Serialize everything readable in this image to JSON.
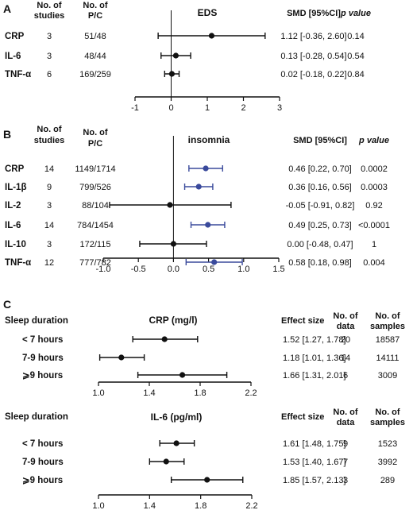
{
  "chart_data": [
    {
      "type": "forest",
      "panel": "A",
      "title": "EDS",
      "headers": [
        "No. of studies",
        "No. of P/C",
        "SMD [95%CI]",
        "p value"
      ],
      "rows": [
        {
          "label": "CRP",
          "studies": "3",
          "pc": "51/48",
          "est": 1.12,
          "lo": -0.36,
          "hi": 2.6,
          "ci_text": "1.12 [-0.36, 2.60]",
          "p": "0.14"
        },
        {
          "label": "IL-6",
          "studies": "3",
          "pc": "48/44",
          "est": 0.13,
          "lo": -0.28,
          "hi": 0.54,
          "ci_text": "0.13 [-0.28, 0.54]",
          "p": "0.54"
        },
        {
          "label": "TNF-α",
          "studies": "6",
          "pc": "169/259",
          "est": 0.02,
          "lo": -0.18,
          "hi": 0.22,
          "ci_text": "0.02 [-0.18, 0.22]",
          "p": "0.84"
        }
      ],
      "x_ticks": [
        -1,
        0,
        1,
        2,
        3
      ],
      "x_tick_labels": [
        "-1",
        "0",
        "1",
        "2",
        "3"
      ],
      "xlim": [
        -1,
        3
      ],
      "ref_line": 0,
      "marker_color": "#111111"
    },
    {
      "type": "forest",
      "panel": "B",
      "title": "insomnia",
      "headers": [
        "No. of studies",
        "No. of P/C",
        "SMD [95%CI]",
        "p value"
      ],
      "rows": [
        {
          "label": "CRP",
          "studies": "14",
          "pc": "1149/1714",
          "est": 0.46,
          "lo": 0.22,
          "hi": 0.7,
          "ci_text": "0.46 [0.22, 0.70]",
          "p": "0.0002",
          "sig": true
        },
        {
          "label": "IL-1β",
          "studies": "9",
          "pc": "799/526",
          "est": 0.36,
          "lo": 0.16,
          "hi": 0.56,
          "ci_text": "0.36 [0.16, 0.56]",
          "p": "0.0003",
          "sig": true
        },
        {
          "label": "IL-2",
          "studies": "3",
          "pc": "88/104",
          "est": -0.05,
          "lo": -0.91,
          "hi": 0.82,
          "ci_text": "-0.05 [-0.91, 0.82]",
          "p": "0.92",
          "sig": false
        },
        {
          "label": "IL-6",
          "studies": "14",
          "pc": "784/1454",
          "est": 0.49,
          "lo": 0.25,
          "hi": 0.73,
          "ci_text": "0.49 [0.25, 0.73]",
          "p": "<0.0001",
          "sig": true
        },
        {
          "label": "IL-10",
          "studies": "3",
          "pc": "172/115",
          "est": 0.0,
          "lo": -0.48,
          "hi": 0.47,
          "ci_text": "0.00 [-0.48, 0.47]",
          "p": "1",
          "sig": false
        },
        {
          "label": "TNF-α",
          "studies": "12",
          "pc": "777/782",
          "est": 0.58,
          "lo": 0.18,
          "hi": 0.98,
          "ci_text": "0.58 [0.18, 0.98]",
          "p": "0.004",
          "sig": true
        }
      ],
      "x_ticks": [
        -1.0,
        -0.5,
        0.0,
        0.5,
        1.0,
        1.5
      ],
      "x_tick_labels": [
        "-1.0",
        "-0.5",
        "0.0",
        "0.5",
        "1.0",
        "1.5"
      ],
      "xlim": [
        -1.0,
        1.5
      ],
      "ref_line": 0,
      "sig_color": "#3a4a9c",
      "marker_color": "#111111"
    },
    {
      "type": "forest",
      "panel": "C",
      "title": "CRP (mg/l)",
      "row_header": "Sleep duration",
      "headers": [
        "Effect size",
        "No. of data",
        "No. of samples"
      ],
      "rows": [
        {
          "label": "< 7 hours",
          "est": 1.52,
          "lo": 1.27,
          "hi": 1.78,
          "ci_text": "1.52 [1.27, 1.78]",
          "n_data": "20",
          "n_samples": "18587"
        },
        {
          "label": "7-9 hours",
          "est": 1.18,
          "lo": 1.01,
          "hi": 1.36,
          "ci_text": "1.18 [1.01, 1.36]",
          "n_data": "14",
          "n_samples": "14111"
        },
        {
          "label": "⩾9 hours",
          "est": 1.66,
          "lo": 1.31,
          "hi": 2.01,
          "ci_text": "1.66 [1.31, 2.01]",
          "n_data": "6",
          "n_samples": "3009"
        }
      ],
      "x_ticks": [
        1.0,
        1.4,
        1.8,
        2.2
      ],
      "x_tick_labels": [
        "1.0",
        "1.4",
        "1.8",
        "2.2"
      ],
      "xlim": [
        1.0,
        2.2
      ],
      "marker_color": "#111111"
    },
    {
      "type": "forest",
      "panel": "",
      "title": "IL-6 (pg/ml)",
      "row_header": "Sleep duration",
      "headers": [
        "Effect size",
        "No. of data",
        "No. of samples"
      ],
      "rows": [
        {
          "label": "< 7 hours",
          "est": 1.61,
          "lo": 1.48,
          "hi": 1.75,
          "ci_text": "1.61 [1.48, 1.75]",
          "n_data": "9",
          "n_samples": "1523"
        },
        {
          "label": "7-9 hours",
          "est": 1.53,
          "lo": 1.4,
          "hi": 1.67,
          "ci_text": "1.53 [1.40, 1.67]",
          "n_data": "7",
          "n_samples": "3992"
        },
        {
          "label": "⩾9 hours",
          "est": 1.85,
          "lo": 1.57,
          "hi": 2.13,
          "ci_text": "1.85 [1.57, 2.13]",
          "n_data": "3",
          "n_samples": "289"
        }
      ],
      "x_ticks": [
        1.0,
        1.4,
        1.8,
        2.2
      ],
      "x_tick_labels": [
        "1.0",
        "1.4",
        "1.8",
        "2.2"
      ],
      "xlim": [
        1.0,
        2.2
      ],
      "marker_color": "#111111"
    }
  ]
}
